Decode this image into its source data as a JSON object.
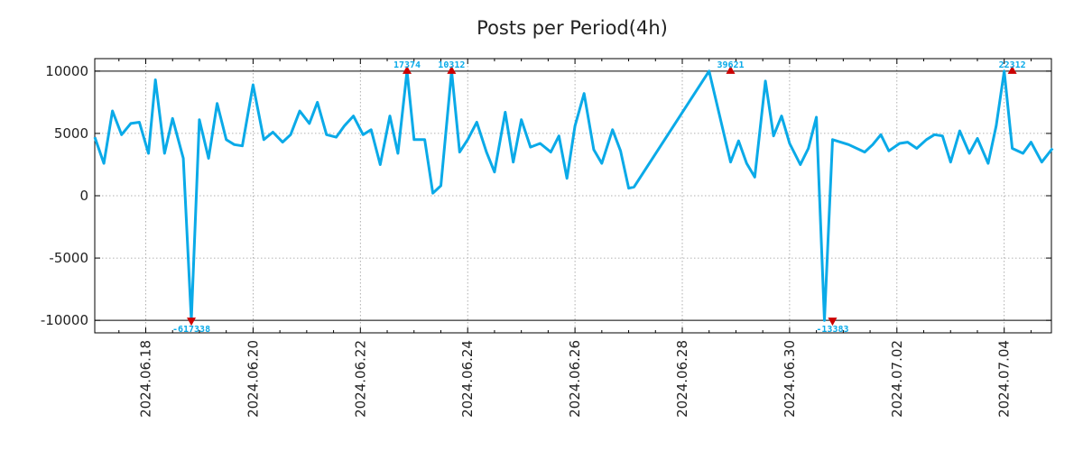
{
  "chart_data": {
    "type": "line",
    "title": "Posts per Period(4h)",
    "xlabel": "",
    "ylabel": "",
    "ylim": [
      -11000,
      11000
    ],
    "xlim_days": [
      -0.95,
      16.9
    ],
    "x_origin_date": "2024.06.18",
    "yticks": [
      10000,
      5000,
      0,
      -5000,
      -10000
    ],
    "ytick_labels": [
      "10000",
      "5000",
      "0",
      "-5000",
      "-10000"
    ],
    "xticks_days": [
      0,
      2,
      4,
      6,
      8,
      10,
      12,
      14,
      16
    ],
    "xtick_labels": [
      "2024.06.18",
      "2024.06.20",
      "2024.06.22",
      "2024.06.24",
      "2024.06.26",
      "2024.06.28",
      "2024.06.30",
      "2024.07.02",
      "2024.07.04"
    ],
    "clip_lines": [
      10000,
      -10000
    ],
    "grid": true,
    "line_color": "#0aaae8",
    "marker_color": "#cc0000",
    "series": [
      {
        "name": "Posts",
        "x_days": [
          -0.95,
          -0.78,
          -0.62,
          -0.45,
          -0.28,
          -0.12,
          0.05,
          0.18,
          0.35,
          0.5,
          0.7,
          0.85,
          1.0,
          1.17,
          1.33,
          1.5,
          1.65,
          1.8,
          2.0,
          2.2,
          2.37,
          2.55,
          2.7,
          2.87,
          3.05,
          3.2,
          3.37,
          3.55,
          3.7,
          3.87,
          4.05,
          4.2,
          4.37,
          4.55,
          4.7,
          4.87,
          5.0,
          5.2,
          5.35,
          5.5,
          5.7,
          5.85,
          6.0,
          6.17,
          6.35,
          6.5,
          6.7,
          6.85,
          7.0,
          7.17,
          7.35,
          7.55,
          7.7,
          7.85,
          8.0,
          8.17,
          8.35,
          8.5,
          8.7,
          8.85,
          9.0,
          9.1,
          10.5,
          10.9,
          11.05,
          11.2,
          11.35,
          11.55,
          11.7,
          11.85,
          12.0,
          12.2,
          12.35,
          12.5,
          12.65,
          12.8,
          12.95,
          13.1,
          13.4,
          13.55,
          13.7,
          13.85,
          14.05,
          14.2,
          14.37,
          14.55,
          14.7,
          14.85,
          15.0,
          15.17,
          15.35,
          15.5,
          15.7,
          15.85,
          16.0,
          16.15,
          16.35,
          16.5,
          16.7,
          16.9
        ],
        "y": [
          4700,
          2600,
          6800,
          4900,
          5800,
          5900,
          3400,
          9300,
          3400,
          6200,
          3000,
          -10000,
          6100,
          3000,
          7400,
          4500,
          4100,
          4000,
          8900,
          4500,
          5100,
          4300,
          4900,
          6800,
          5800,
          7500,
          4900,
          4700,
          5600,
          6400,
          4900,
          5300,
          2500,
          6400,
          3400,
          10000,
          4500,
          4500,
          200,
          800,
          10000,
          3500,
          4500,
          5900,
          3500,
          1900,
          6700,
          2700,
          6100,
          3900,
          4200,
          3500,
          4800,
          1400,
          5600,
          8200,
          3700,
          2600,
          5300,
          3600,
          600,
          700,
          10000,
          2700,
          4400,
          2600,
          1500,
          9200,
          4800,
          6400,
          4200,
          2500,
          3800,
          6300,
          -10000,
          4500,
          4300,
          4100,
          3500,
          4100,
          4900,
          3600,
          4200,
          4300,
          3800,
          4500,
          4900,
          4800,
          2700,
          5200,
          3400,
          4600,
          2600,
          5600,
          10000,
          3800,
          3400,
          4300,
          2700,
          3800
        ]
      }
    ],
    "annotations": [
      {
        "label": "-617338",
        "x_day": 0.85,
        "y": -10000,
        "dir": "down"
      },
      {
        "label": "17374",
        "x_day": 4.87,
        "y": 10000,
        "dir": "up"
      },
      {
        "label": "10312",
        "x_day": 5.7,
        "y": 10000,
        "dir": "up"
      },
      {
        "label": "39621",
        "x_day": 10.9,
        "y": 10000,
        "dir": "up"
      },
      {
        "label": "-13383",
        "x_day": 12.8,
        "y": -10000,
        "dir": "down"
      },
      {
        "label": "22312",
        "x_day": 16.15,
        "y": 10000,
        "dir": "up"
      }
    ]
  }
}
